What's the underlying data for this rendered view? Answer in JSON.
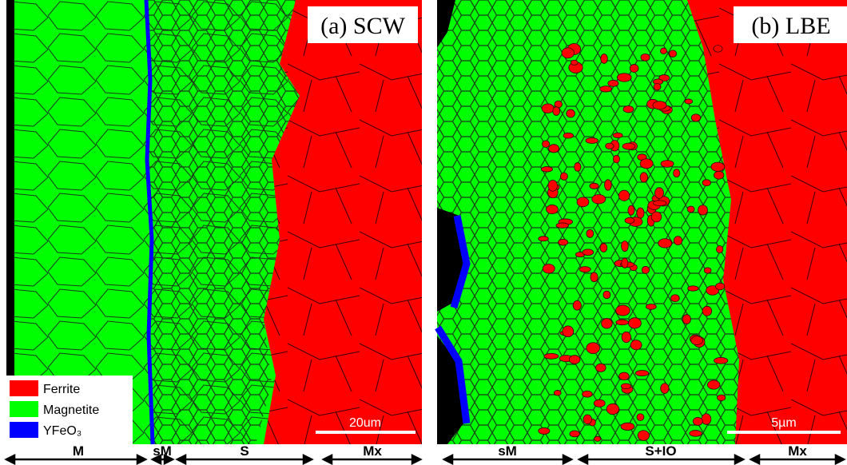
{
  "panels": [
    {
      "label": "(a) SCW",
      "scale_bar": "20um",
      "zones": [
        "M",
        "sM",
        "S",
        "Mx"
      ]
    },
    {
      "label": "(b) LBE",
      "scale_bar": "5µm",
      "zones": [
        "sM",
        "S+IO",
        "Mx"
      ]
    }
  ],
  "legend": [
    "Ferrite",
    "Magnetite",
    "YFeO₃"
  ]
}
